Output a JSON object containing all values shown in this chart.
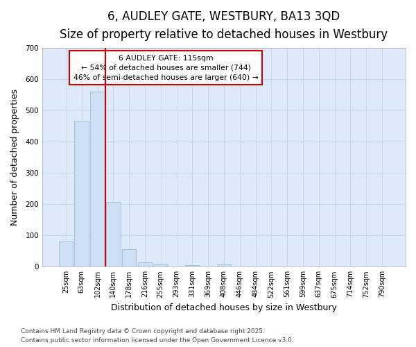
{
  "title": "6, AUDLEY GATE, WESTBURY, BA13 3QD",
  "subtitle": "Size of property relative to detached houses in Westbury",
  "xlabel": "Distribution of detached houses by size in Westbury",
  "ylabel": "Number of detached properties",
  "categories": [
    "25sqm",
    "63sqm",
    "102sqm",
    "140sqm",
    "178sqm",
    "216sqm",
    "255sqm",
    "293sqm",
    "331sqm",
    "369sqm",
    "408sqm",
    "446sqm",
    "484sqm",
    "522sqm",
    "561sqm",
    "599sqm",
    "637sqm",
    "675sqm",
    "714sqm",
    "752sqm",
    "790sqm"
  ],
  "values": [
    80,
    467,
    560,
    207,
    57,
    15,
    7,
    0,
    5,
    0,
    8,
    0,
    0,
    0,
    0,
    0,
    0,
    0,
    0,
    0,
    0
  ],
  "bar_color": "#ccdff5",
  "bar_edge_color": "#9bbcdb",
  "grid_color": "#c5d8ee",
  "plot_bg_color": "#deeaf7",
  "fig_bg_color": "#ffffff",
  "annotation_box_color": "#cc0000",
  "red_line_x": 2.5,
  "annotation_text_line1": "6 AUDLEY GATE: 115sqm",
  "annotation_text_line2": "← 54% of detached houses are smaller (744)",
  "annotation_text_line3": "46% of semi-detached houses are larger (640) →",
  "ylim": [
    0,
    700
  ],
  "yticks": [
    0,
    100,
    200,
    300,
    400,
    500,
    600,
    700
  ],
  "footer_line1": "Contains HM Land Registry data © Crown copyright and database right 2025.",
  "footer_line2": "Contains public sector information licensed under the Open Government Licence v3.0.",
  "title_fontsize": 12,
  "subtitle_fontsize": 10,
  "tick_fontsize": 7,
  "axis_label_fontsize": 9,
  "footer_fontsize": 6.5
}
